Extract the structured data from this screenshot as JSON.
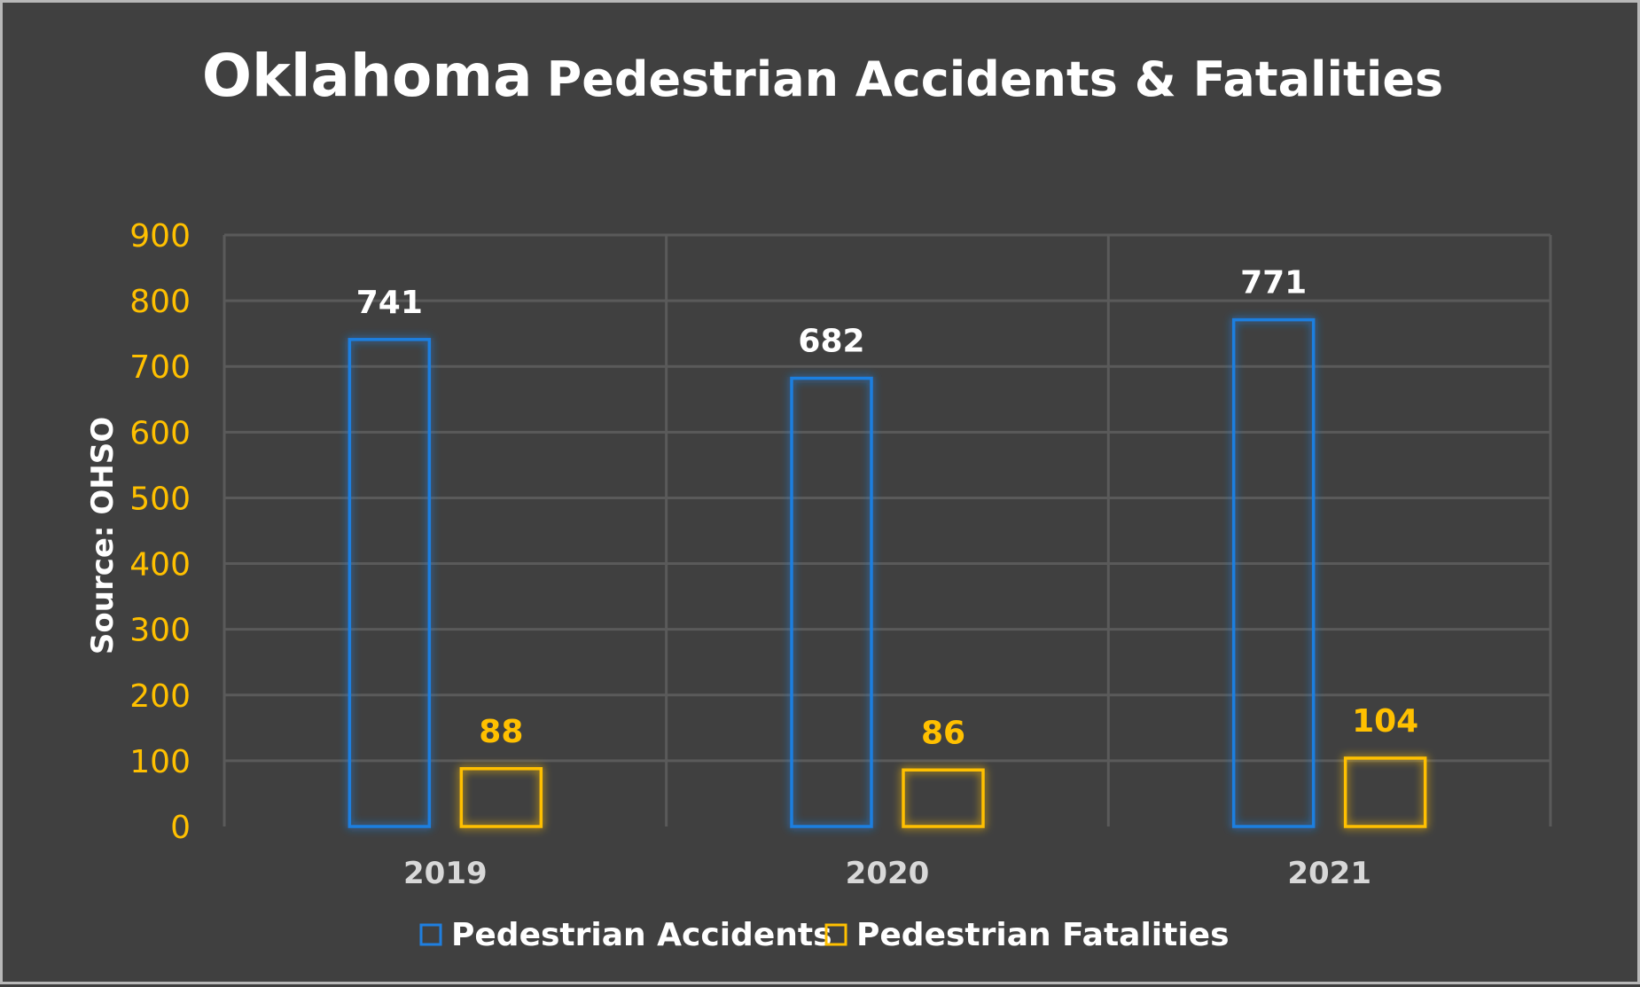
{
  "chart_data": {
    "type": "bar",
    "title": {
      "main": "Oklahoma",
      "sub": "Pedestrian Accidents & Fatalities"
    },
    "ylabel": "Source: OHSO",
    "categories": [
      "2019",
      "2020",
      "2021"
    ],
    "series": [
      {
        "name": "Pedestrian Accidents",
        "values": [
          741,
          682,
          771
        ],
        "color": "#1f7fe0",
        "label_color": "#ffffff"
      },
      {
        "name": "Pedestrian Fatalities",
        "values": [
          88,
          86,
          104
        ],
        "color": "#ffc000",
        "label_color": "#ffc000"
      }
    ],
    "ylim": [
      0,
      900
    ],
    "yticks": [
      0,
      100,
      200,
      300,
      400,
      500,
      600,
      700,
      800,
      900
    ],
    "grid": true,
    "legend": "bottom"
  },
  "colors": {
    "background": "#404040",
    "tick_color": "#ffc000",
    "category_color": "#d8d8d8"
  }
}
